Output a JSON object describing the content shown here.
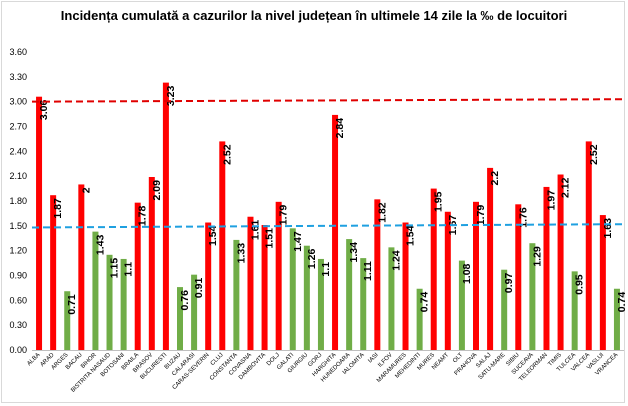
{
  "chart_data": {
    "type": "bar",
    "title": "Incidența cumulată a cazurilor la nivel județean în ultimele 14 zile la ‰ de locuitori",
    "xlabel": "",
    "ylabel": "",
    "ylim": [
      0,
      3.6
    ],
    "yticks": [
      "0.00",
      "0.30",
      "0.60",
      "0.90",
      "1.20",
      "1.50",
      "1.80",
      "2.10",
      "2.40",
      "2.70",
      "3.00",
      "3.30",
      "3.60"
    ],
    "grid": false,
    "legend": "none",
    "categories": [
      "ALBA",
      "ARAD",
      "ARGES",
      "BACAU",
      "BIHOR",
      "BISTRITA NASAUD",
      "BOTOSANI",
      "BRAILA",
      "BRASOV",
      "BUCURESTI",
      "BUZAU",
      "CALARASI",
      "CARAS-SEVERIN",
      "CLUJ",
      "CONSTANTA",
      "COVASNA",
      "DAMBOVITA",
      "DOLJ",
      "GALATI",
      "GIURGIU",
      "GORJ",
      "HARGHITA",
      "HUNEDOARA",
      "IALOMITA",
      "IASI",
      "ILFOV",
      "MARAMURES",
      "MEHEDINTI",
      "MURES",
      "NEAMT",
      "OLT",
      "PRAHOVA",
      "SALAJ",
      "SATU-MARE",
      "SIBIU",
      "SUCEAVA",
      "TELEORMAN",
      "TIMIS",
      "TULCEA",
      "VALCEA",
      "VASLUI",
      "VRANCEA"
    ],
    "values": [
      3.06,
      1.87,
      0.71,
      2,
      1.43,
      1.15,
      1.1,
      1.78,
      2.09,
      3.23,
      0.76,
      0.91,
      1.54,
      2.52,
      1.33,
      1.61,
      1.51,
      1.79,
      1.47,
      1.26,
      1.1,
      2.84,
      1.34,
      1.11,
      1.82,
      1.24,
      1.54,
      0.74,
      1.95,
      1.67,
      1.08,
      1.79,
      2.2,
      0.97,
      1.76,
      1.29,
      1.97,
      2.12,
      0.95,
      2.52,
      1.63,
      0.74
    ],
    "value_labels": [
      "3.06",
      "1.87",
      "0.71",
      "2",
      "1.43",
      "1.15",
      "1.1",
      "1.78",
      "2.09",
      "3.23",
      "0.76",
      "0.91",
      "1.54",
      "2.52",
      "1.33",
      "1.61",
      "1.51",
      "1.79",
      "1.47",
      "1.26",
      "1.1",
      "2.84",
      "1.34",
      "1.11",
      "1.82",
      "1.24",
      "1.54",
      "0.74",
      "1.95",
      "1.67",
      "1.08",
      "1.79",
      "2.2",
      "0.97",
      "1.76",
      "1.29",
      "1.97",
      "2.12",
      "0.95",
      "2.52",
      "1.63",
      "0.74"
    ],
    "bar_colors": {
      "above_threshold": "#ff0000",
      "below_threshold": "#70ad47"
    },
    "reference_lines": [
      {
        "style": "dashed",
        "color": "#e00000",
        "y_start": 3.0,
        "y_end": 3.03
      },
      {
        "style": "dashed",
        "color": "#1fa0e0",
        "y_start": 1.48,
        "y_end": 1.52
      }
    ]
  }
}
